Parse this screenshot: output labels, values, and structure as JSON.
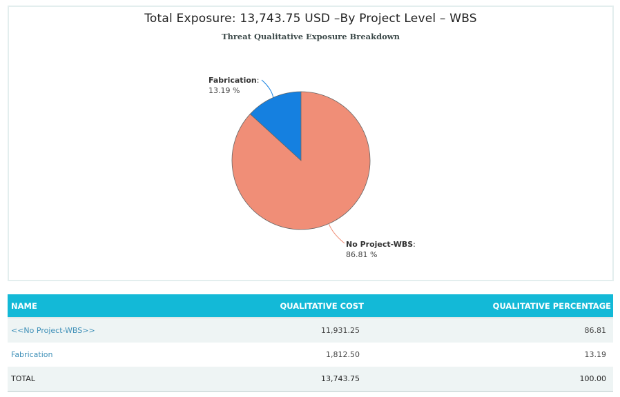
{
  "chart": {
    "title": "Total Exposure: 13,743.75 USD –By Project Level – WBS",
    "subtitle": "Threat Qualitative Exposure Breakdown"
  },
  "chart_data": {
    "type": "pie",
    "title": "Total Exposure: 13,743.75 USD –By Project Level – WBS",
    "subtitle": "Threat Qualitative Exposure Breakdown",
    "slices": [
      {
        "label": "Fabrication",
        "value": 13.19,
        "display": "13.19 %",
        "color": "#1580e0"
      },
      {
        "label": "No Project-WBS",
        "value": 86.81,
        "display": "86.81 %",
        "color": "#f08e77"
      }
    ]
  },
  "table": {
    "headers": {
      "name": "NAME",
      "cost": "QUALITATIVE COST",
      "pct": "QUALITATIVE PERCENTAGE"
    },
    "rows": [
      {
        "name": "<<No Project-WBS>>",
        "cost": "11,931.25",
        "pct": "86.81"
      },
      {
        "name": "Fabrication",
        "cost": "1,812.50",
        "pct": "13.19"
      }
    ],
    "total": {
      "name": "TOTAL",
      "cost": "13,743.75",
      "pct": "100.00"
    }
  }
}
